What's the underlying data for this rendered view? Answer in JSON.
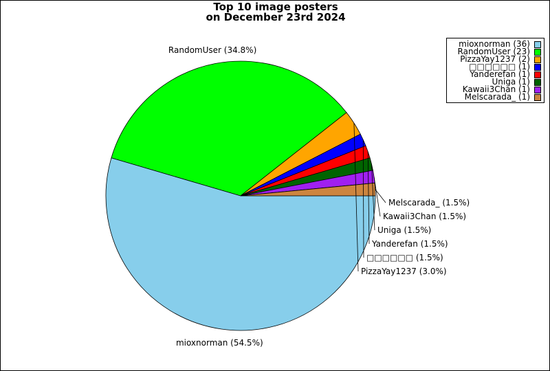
{
  "chart_data": {
    "type": "pie",
    "title": "Top 10 image posters",
    "subtitle": "on December 23rd 2024",
    "legend_position": "top-right",
    "slices": [
      {
        "name": "mioxnorman",
        "count": 36,
        "percent_label": "(54.5%)",
        "legend_label": "mioxnorman (36)",
        "color": "#87CEEB"
      },
      {
        "name": "RandomUser",
        "count": 23,
        "percent_label": "(34.8%)",
        "legend_label": "RandomUser (23)",
        "color": "#00FF00"
      },
      {
        "name": "PizzaYay1237",
        "count": 2,
        "percent_label": "(3.0%)",
        "legend_label": "PizzaYay1237 (2)",
        "color": "#FFA500"
      },
      {
        "name": "□□□□□□",
        "count": 1,
        "percent_label": "(1.5%)",
        "legend_label": "□□□□□□ (1)",
        "color": "#0000FF"
      },
      {
        "name": "Yanderefan",
        "count": 1,
        "percent_label": "(1.5%)",
        "legend_label": "Yanderefan (1)",
        "color": "#FF0000"
      },
      {
        "name": "Uniga",
        "count": 1,
        "percent_label": "(1.5%)",
        "legend_label": "Uniga (1)",
        "color": "#006400"
      },
      {
        "name": "Kawaii3Chan",
        "count": 1,
        "percent_label": "(1.5%)",
        "legend_label": "Kawaii3Chan (1)",
        "color": "#A020F0"
      },
      {
        "name": "Melscarada_",
        "count": 1,
        "percent_label": "(1.5%)",
        "legend_label": "Melscarada_ (1)",
        "color": "#CD853F"
      }
    ]
  }
}
